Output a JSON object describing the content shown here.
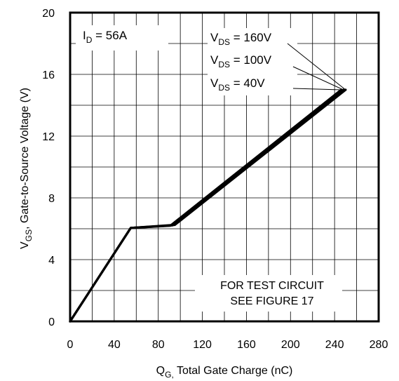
{
  "chart_data": {
    "type": "line",
    "xlabel": {
      "main": "Q",
      "sub": "G,",
      "rest": " Total Gate Charge (nC)"
    },
    "ylabel": {
      "main": "V",
      "sub": "GS",
      "rest": ", Gate-to-Source Voltage (V)"
    },
    "xlim": [
      0,
      280
    ],
    "ylim": [
      0,
      20
    ],
    "x_ticks": [
      "0",
      "40",
      "80",
      "120",
      "160",
      "200",
      "240",
      "280"
    ],
    "y_ticks": [
      "0",
      "4",
      "8",
      "12",
      "16",
      "20"
    ],
    "grid": true,
    "series": [
      {
        "name": "VDS = 160V",
        "x": [
          0,
          55,
          95,
          250
        ],
        "y": [
          0,
          6.05,
          6.25,
          15.0
        ]
      },
      {
        "name": "VDS = 100V",
        "x": [
          0,
          55,
          93,
          248
        ],
        "y": [
          0,
          6.05,
          6.22,
          15.0
        ]
      },
      {
        "name": "VDS = 40V",
        "x": [
          0,
          55,
          91,
          246
        ],
        "y": [
          0,
          6.05,
          6.2,
          15.0
        ]
      }
    ],
    "annotations": {
      "id": {
        "main": "I",
        "sub": "D",
        "rest": " = 56A"
      },
      "vds_labels": [
        {
          "main": "V",
          "sub": "DS",
          "rest": " = 160V"
        },
        {
          "main": "V",
          "sub": "DS",
          "rest": " = 100V"
        },
        {
          "main": "V",
          "sub": "DS",
          "rest": " = 40V"
        }
      ],
      "test_circuit": [
        "FOR TEST CIRCUIT",
        "SEE FIGURE 17"
      ]
    }
  }
}
